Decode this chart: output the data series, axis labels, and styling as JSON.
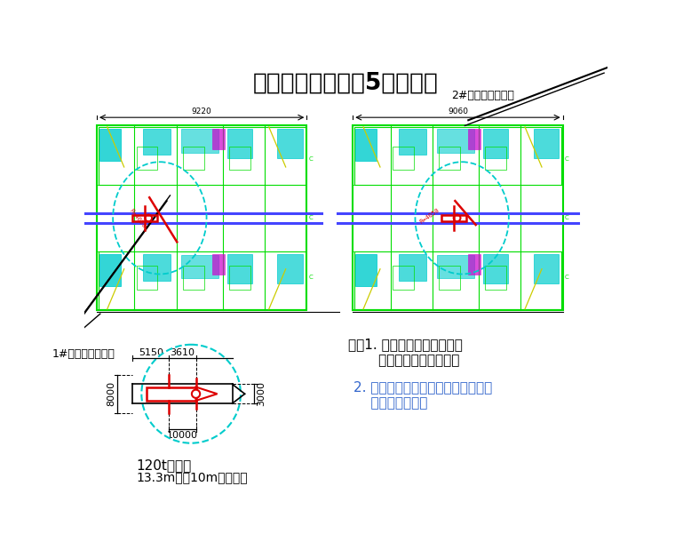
{
  "title": "吊装平面图（锌锅5片供货）",
  "label_1": "1#热镀锌机组锌锅",
  "label_2": "2#热镀锌机组锌锅",
  "note_line1": "注：1. 山车行走道路需回填、",
  "note_line2": "       夯实、面层施工完成；",
  "note_line3": "2. 吊车走行路线上，无地下室孔洞，",
  "note_line4": "    全为实心基础。",
  "crane_label": "120t汽车吊",
  "crane_spec": "13.3m杆，10m作业半径",
  "dim_5150": "5150",
  "dim_3610": "3610",
  "dim_8000": "8000",
  "dim_10000": "10000",
  "dim_3000": "3000",
  "dim_top_left": "9220",
  "dim_top_right": "9060",
  "bg_color": "#ffffff",
  "green": "#00dd00",
  "green2": "#00aa00",
  "blue": "#4444ff",
  "red": "#dd0000",
  "cyan": "#00cccc",
  "yellow": "#cccc00",
  "magenta": "#cc00cc",
  "black": "#000000",
  "note2_color": "#3366cc",
  "gray": "#888888"
}
